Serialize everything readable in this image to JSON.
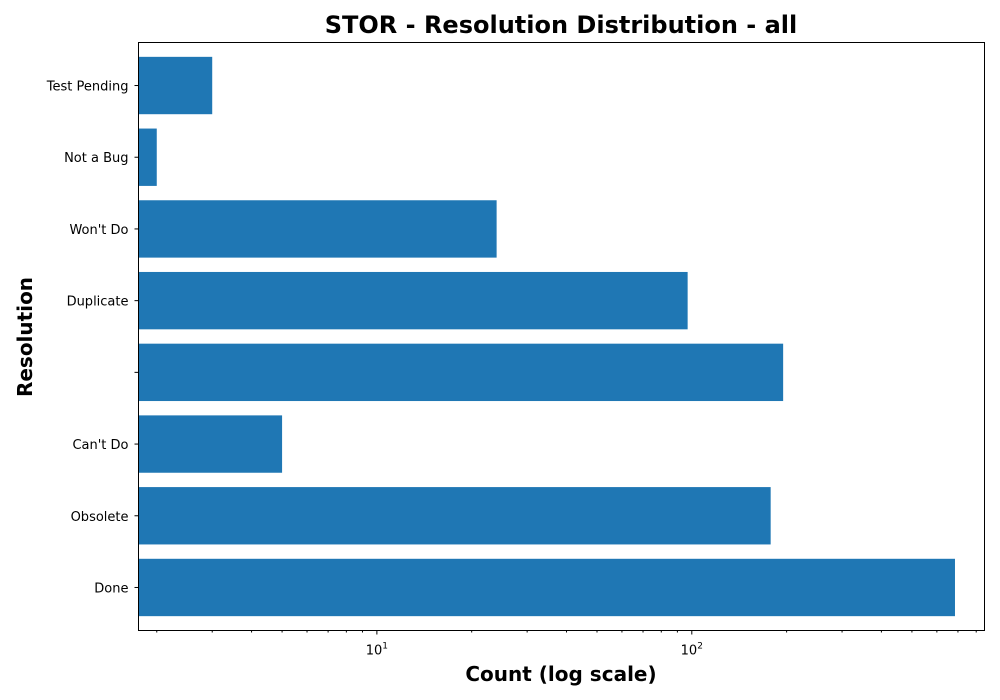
{
  "chart_data": {
    "type": "bar",
    "orientation": "horizontal",
    "title": "STOR - Resolution Distribution - all",
    "xlabel": "Count (log scale)",
    "ylabel": "Resolution",
    "xscale": "log",
    "xlim": [
      1.75,
      850
    ],
    "major_ticks": [
      {
        "value": 10,
        "base": "10",
        "exp": "1"
      },
      {
        "value": 100,
        "base": "10",
        "exp": "2"
      }
    ],
    "categories": [
      "Done",
      "Obsolete",
      "Can't Do",
      "",
      "Duplicate",
      "Won't Do",
      "Not a Bug",
      "Test Pending"
    ],
    "values": [
      685,
      178,
      5,
      195,
      97,
      24,
      2,
      3
    ],
    "bar_color": "#1f77b4",
    "grid": false,
    "legend": "none"
  }
}
